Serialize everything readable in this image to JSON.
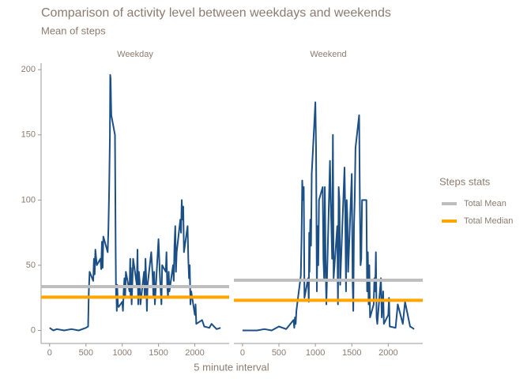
{
  "chart_data": {
    "type": "line",
    "title": "Comparison of activity level between weekdays and weekends",
    "subtitle": "Mean of steps",
    "xlabel": "5 minute interval",
    "legend_title": "Steps stats",
    "legend": "right",
    "line_color": "#1b4f86",
    "xlim": [
      -118,
      2473
    ],
    "ylim": [
      -10,
      205
    ],
    "xticks": [
      0,
      500,
      1000,
      1500,
      2000
    ],
    "yticks": [
      0,
      50,
      100,
      150,
      200
    ],
    "panels": [
      {
        "title": "Weekday",
        "x": [
          0,
          25,
          50,
          100,
          200,
          300,
          400,
          500,
          530,
          540,
          550,
          600,
          610,
          620,
          630,
          650,
          700,
          710,
          720,
          730,
          740,
          800,
          810,
          820,
          830,
          835,
          840,
          845,
          850,
          900,
          905,
          910,
          915,
          920,
          925,
          930,
          940,
          950,
          1000,
          1010,
          1020,
          1030,
          1040,
          1050,
          1100,
          1110,
          1115,
          1120,
          1130,
          1140,
          1150,
          1200,
          1210,
          1220,
          1230,
          1240,
          1250,
          1300,
          1310,
          1320,
          1330,
          1340,
          1350,
          1400,
          1410,
          1420,
          1430,
          1440,
          1450,
          1500,
          1510,
          1520,
          1530,
          1540,
          1550,
          1600,
          1610,
          1620,
          1630,
          1640,
          1650,
          1700,
          1710,
          1720,
          1730,
          1740,
          1750,
          1800,
          1810,
          1820,
          1830,
          1840,
          1850,
          1900,
          1910,
          1920,
          1930,
          1940,
          1950,
          2000,
          2010,
          2020,
          2100,
          2130,
          2200,
          2230,
          2300,
          2355
        ],
        "values": [
          2,
          1,
          0,
          1,
          0,
          1,
          0,
          2,
          3,
          30,
          45,
          38,
          55,
          43,
          62,
          50,
          55,
          47,
          68,
          48,
          72,
          60,
          78,
          110,
          150,
          196,
          193,
          175,
          165,
          150,
          100,
          60,
          25,
          30,
          15,
          35,
          20,
          18,
          22,
          15,
          30,
          40,
          25,
          45,
          30,
          55,
          25,
          48,
          20,
          38,
          55,
          35,
          62,
          20,
          45,
          38,
          20,
          45,
          25,
          55,
          40,
          15,
          35,
          60,
          50,
          40,
          25,
          45,
          20,
          70,
          55,
          40,
          30,
          20,
          50,
          45,
          60,
          35,
          25,
          45,
          30,
          50,
          38,
          65,
          80,
          45,
          60,
          85,
          75,
          100,
          85,
          95,
          60,
          80,
          55,
          40,
          50,
          20,
          30,
          12,
          20,
          5,
          8,
          3,
          2,
          5,
          1,
          2
        ]
      },
      {
        "title": "Weekend",
        "x": [
          0,
          100,
          200,
          300,
          400,
          500,
          600,
          700,
          710,
          720,
          730,
          740,
          750,
          800,
          810,
          820,
          830,
          840,
          850,
          900,
          910,
          915,
          920,
          930,
          940,
          950,
          1000,
          1010,
          1020,
          1030,
          1040,
          1050,
          1100,
          1110,
          1120,
          1130,
          1140,
          1150,
          1200,
          1210,
          1220,
          1230,
          1240,
          1250,
          1300,
          1310,
          1320,
          1330,
          1340,
          1350,
          1400,
          1410,
          1420,
          1430,
          1440,
          1450,
          1500,
          1510,
          1520,
          1530,
          1540,
          1550,
          1600,
          1610,
          1620,
          1630,
          1640,
          1650,
          1700,
          1710,
          1720,
          1730,
          1740,
          1750,
          1800,
          1810,
          1820,
          1830,
          1840,
          1850,
          1900,
          1910,
          1920,
          1930,
          1940,
          2000,
          2010,
          2020,
          2100,
          2130,
          2200,
          2230,
          2300,
          2330,
          2355
        ],
        "values": [
          0,
          0,
          0,
          1,
          0,
          3,
          1,
          8,
          2,
          10,
          5,
          15,
          20,
          42,
          70,
          115,
          100,
          110,
          25,
          40,
          22,
          75,
          45,
          85,
          65,
          120,
          175,
          140,
          30,
          80,
          50,
          100,
          110,
          55,
          40,
          110,
          55,
          20,
          130,
          100,
          80,
          55,
          150,
          40,
          80,
          20,
          110,
          100,
          35,
          50,
          125,
          90,
          30,
          100,
          85,
          45,
          120,
          40,
          15,
          80,
          100,
          140,
          165,
          100,
          50,
          55,
          100,
          100,
          100,
          30,
          60,
          20,
          50,
          10,
          20,
          40,
          30,
          60,
          10,
          5,
          40,
          10,
          20,
          30,
          5,
          12,
          25,
          3,
          2,
          20,
          5,
          22,
          3,
          2,
          1
        ]
      }
    ],
    "stats": [
      {
        "name": "Total Mean",
        "color": "#bebebe",
        "values": [
          33.6,
          38.5
        ]
      },
      {
        "name": "Total Median",
        "color": "#ffa500",
        "values": [
          25.5,
          23.1
        ]
      }
    ]
  }
}
